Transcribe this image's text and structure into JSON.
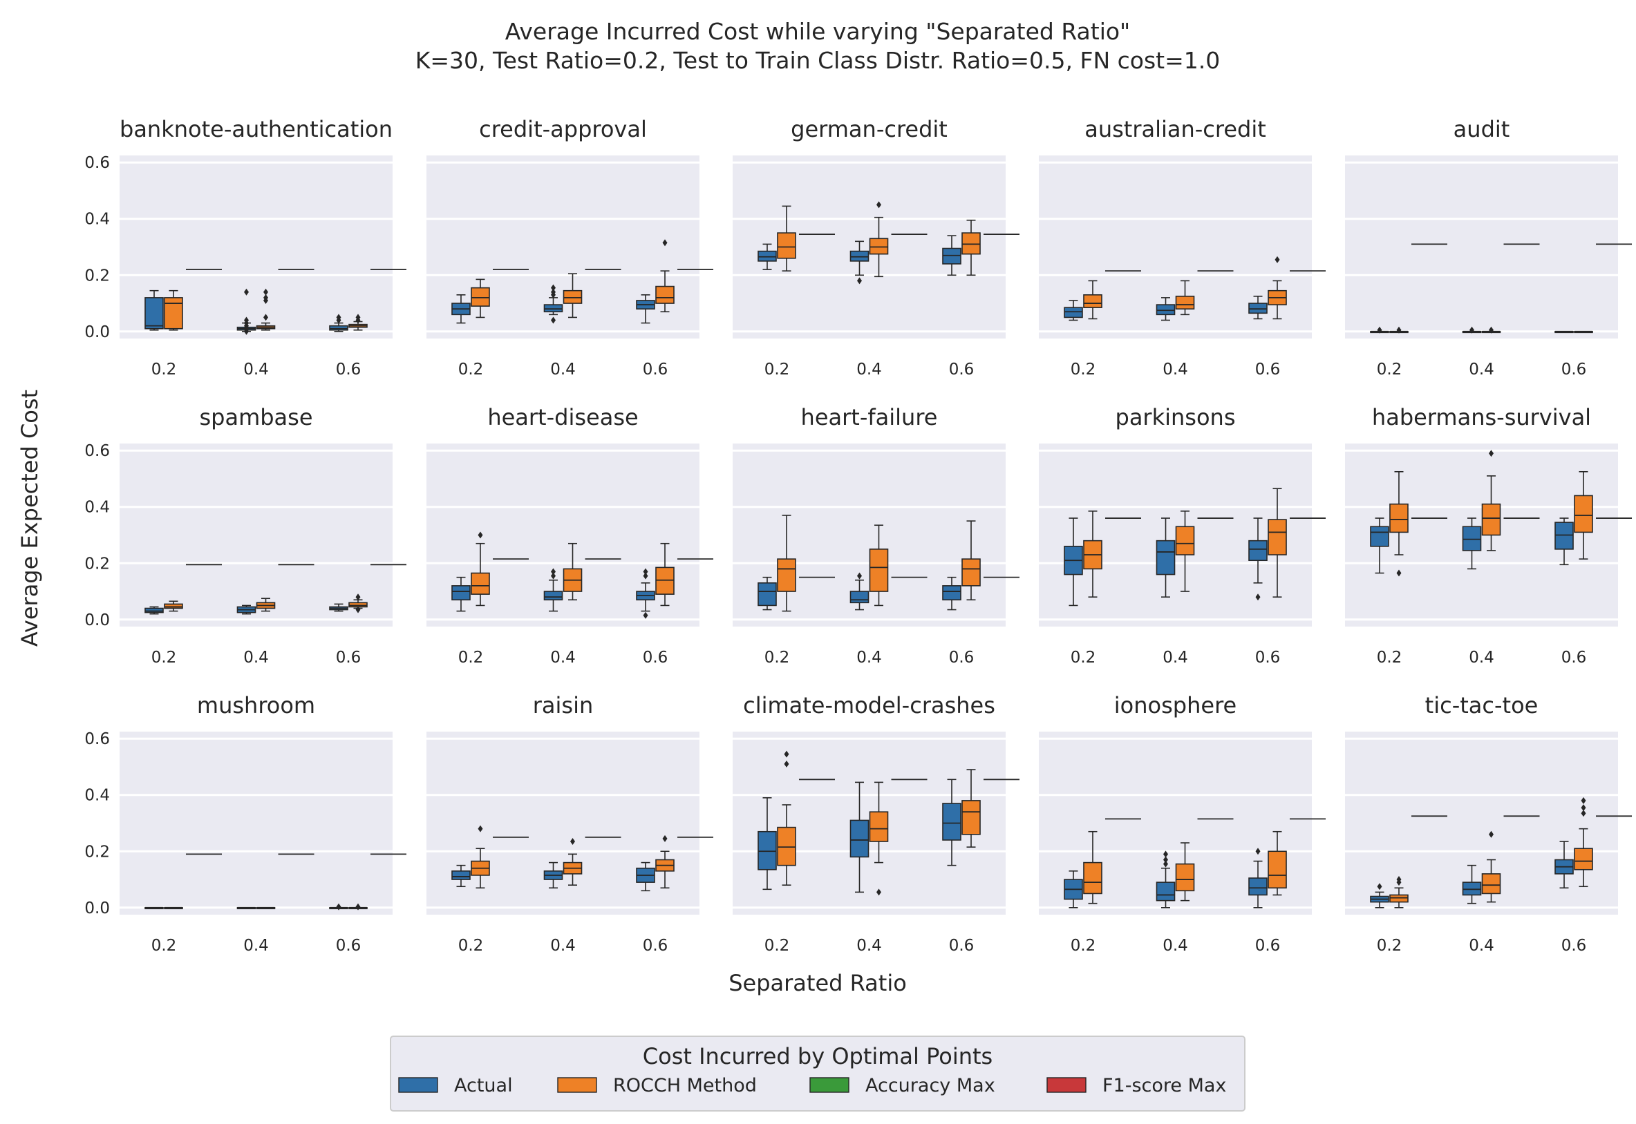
{
  "title": "Average Incurred Cost while varying \"Separated Ratio\"",
  "subtitle": "K=30, Test Ratio=0.2, Test to Train Class Distr. Ratio=0.5, FN cost=1.0",
  "xlabel": "Separated Ratio",
  "ylabel": "Average Expected Cost",
  "legend": {
    "title": "Cost Incurred by Optimal Points",
    "entries": [
      {
        "label": "Actual",
        "color": "#2f6fa8"
      },
      {
        "label": "ROCCH Method",
        "color": "#ee8126"
      },
      {
        "label": "Accuracy Max",
        "color": "#3a9a3a"
      },
      {
        "label": "F1-score Max",
        "color": "#c8383a"
      }
    ]
  },
  "colors": {
    "panel_bg": "#eaeaf2",
    "grid": "#ffffff",
    "actual": "#2f6fa8",
    "rocch": "#ee8126",
    "line": "#262626"
  },
  "chart_data": {
    "type": "box",
    "categories": [
      "0.2",
      "0.4",
      "0.6"
    ],
    "yticks": [
      "0.0",
      "0.2",
      "0.4",
      "0.6"
    ],
    "ylim": [
      -0.025,
      0.625
    ],
    "grid": true,
    "legend_position": "bottom-center",
    "series_names": [
      "Actual",
      "ROCCH Method",
      "Accuracy Max",
      "F1-score Max"
    ],
    "panels": [
      {
        "name": "banknote-authentication",
        "hline": [
          0.22,
          0.22,
          0.22
        ],
        "actual": [
          [
            0.005,
            0.01,
            0.02,
            0.12,
            0.145
          ],
          [
            0.0,
            0.005,
            0.01,
            0.015,
            0.03
          ],
          [
            0.0,
            0.005,
            0.01,
            0.02,
            0.03
          ]
        ],
        "rocch": [
          [
            0.005,
            0.01,
            0.1,
            0.12,
            0.145
          ],
          [
            0.005,
            0.01,
            0.015,
            0.02,
            0.03
          ],
          [
            0.005,
            0.015,
            0.02,
            0.025,
            0.035
          ]
        ],
        "outliers_actual": [
          [],
          [
            0.14,
            0.04,
            0.03,
            0.02,
            0.01,
            0.0
          ],
          [
            0.05,
            0.04
          ]
        ],
        "outliers_rocch": [
          [],
          [
            0.14,
            0.12,
            0.11,
            0.05
          ],
          [
            0.05,
            0.04
          ]
        ]
      },
      {
        "name": "credit-approval",
        "hline": [
          0.22,
          0.22,
          0.22
        ],
        "actual": [
          [
            0.03,
            0.06,
            0.08,
            0.1,
            0.13
          ],
          [
            0.06,
            0.07,
            0.08,
            0.095,
            0.12
          ],
          [
            0.03,
            0.08,
            0.095,
            0.11,
            0.13
          ]
        ],
        "rocch": [
          [
            0.05,
            0.09,
            0.12,
            0.155,
            0.185
          ],
          [
            0.05,
            0.1,
            0.12,
            0.145,
            0.205
          ],
          [
            0.07,
            0.1,
            0.12,
            0.16,
            0.215
          ]
        ],
        "outliers_actual": [
          [],
          [
            0.155,
            0.14,
            0.13,
            0.04
          ],
          []
        ],
        "outliers_rocch": [
          [],
          [],
          [
            0.315
          ]
        ]
      },
      {
        "name": "german-credit",
        "hline": [
          0.345,
          0.345,
          0.345
        ],
        "actual": [
          [
            0.22,
            0.25,
            0.265,
            0.285,
            0.31
          ],
          [
            0.2,
            0.25,
            0.265,
            0.285,
            0.32
          ],
          [
            0.2,
            0.24,
            0.27,
            0.295,
            0.34
          ]
        ],
        "rocch": [
          [
            0.215,
            0.26,
            0.3,
            0.35,
            0.445
          ],
          [
            0.195,
            0.275,
            0.3,
            0.33,
            0.405
          ],
          [
            0.2,
            0.275,
            0.31,
            0.35,
            0.395
          ]
        ],
        "outliers_actual": [
          [],
          [
            0.18
          ],
          []
        ],
        "outliers_rocch": [
          [],
          [
            0.45
          ],
          []
        ]
      },
      {
        "name": "australian-credit",
        "hline": [
          0.215,
          0.215,
          0.215
        ],
        "actual": [
          [
            0.04,
            0.05,
            0.07,
            0.085,
            0.11
          ],
          [
            0.04,
            0.06,
            0.075,
            0.095,
            0.12
          ],
          [
            0.045,
            0.065,
            0.08,
            0.1,
            0.125
          ]
        ],
        "rocch": [
          [
            0.045,
            0.085,
            0.1,
            0.13,
            0.18
          ],
          [
            0.06,
            0.08,
            0.095,
            0.125,
            0.18
          ],
          [
            0.045,
            0.095,
            0.12,
            0.145,
            0.18
          ]
        ],
        "outliers_actual": [
          [],
          [],
          []
        ],
        "outliers_rocch": [
          [],
          [],
          [
            0.255
          ]
        ]
      },
      {
        "name": "audit",
        "hline": [
          0.31,
          0.31,
          0.31
        ],
        "actual": [
          [
            0,
            0,
            0,
            0,
            0
          ],
          [
            0,
            0,
            0,
            0,
            0
          ],
          [
            0,
            0,
            0,
            0,
            0
          ]
        ],
        "rocch": [
          [
            0,
            0,
            0,
            0,
            0
          ],
          [
            0,
            0,
            0,
            0,
            0
          ],
          [
            0,
            0,
            0,
            0,
            0
          ]
        ],
        "outliers_actual": [
          [
            0.005
          ],
          [
            0.005
          ],
          []
        ],
        "outliers_rocch": [
          [
            0.005
          ],
          [
            0.005
          ],
          []
        ]
      },
      {
        "name": "spambase",
        "hline": [
          0.195,
          0.195,
          0.195
        ],
        "actual": [
          [
            0.02,
            0.025,
            0.03,
            0.04,
            0.045
          ],
          [
            0.02,
            0.025,
            0.035,
            0.045,
            0.05
          ],
          [
            0.03,
            0.035,
            0.04,
            0.045,
            0.055
          ]
        ],
        "rocch": [
          [
            0.03,
            0.04,
            0.045,
            0.055,
            0.065
          ],
          [
            0.03,
            0.04,
            0.05,
            0.06,
            0.075
          ],
          [
            0.04,
            0.045,
            0.05,
            0.06,
            0.07
          ]
        ],
        "outliers_actual": [
          [],
          [],
          []
        ],
        "outliers_rocch": [
          [],
          [],
          [
            0.08,
            0.035
          ]
        ]
      },
      {
        "name": "heart-disease",
        "hline": [
          0.215,
          0.215,
          0.215
        ],
        "actual": [
          [
            0.03,
            0.07,
            0.1,
            0.12,
            0.15
          ],
          [
            0.03,
            0.07,
            0.08,
            0.1,
            0.14
          ],
          [
            0.03,
            0.07,
            0.085,
            0.1,
            0.13
          ]
        ],
        "rocch": [
          [
            0.05,
            0.09,
            0.12,
            0.165,
            0.27
          ],
          [
            0.07,
            0.1,
            0.14,
            0.18,
            0.27
          ],
          [
            0.05,
            0.09,
            0.14,
            0.185,
            0.27
          ]
        ],
        "outliers_actual": [
          [],
          [
            0.17,
            0.155
          ],
          [
            0.17,
            0.155,
            0.015
          ]
        ],
        "outliers_rocch": [
          [
            0.3
          ],
          [],
          []
        ]
      },
      {
        "name": "heart-failure",
        "hline": [
          0.15,
          0.15,
          0.15
        ],
        "actual": [
          [
            0.035,
            0.05,
            0.1,
            0.13,
            0.15
          ],
          [
            0.035,
            0.06,
            0.07,
            0.1,
            0.14
          ],
          [
            0.035,
            0.07,
            0.1,
            0.12,
            0.15
          ]
        ],
        "rocch": [
          [
            0.03,
            0.1,
            0.18,
            0.215,
            0.37
          ],
          [
            0.05,
            0.1,
            0.185,
            0.25,
            0.335
          ],
          [
            0.07,
            0.12,
            0.18,
            0.215,
            0.35
          ]
        ],
        "outliers_actual": [
          [],
          [
            0.155
          ],
          []
        ],
        "outliers_rocch": [
          [],
          [],
          []
        ]
      },
      {
        "name": "parkinsons",
        "hline": [
          0.36,
          0.36,
          0.36
        ],
        "actual": [
          [
            0.05,
            0.16,
            0.21,
            0.26,
            0.36
          ],
          [
            0.08,
            0.16,
            0.24,
            0.28,
            0.36
          ],
          [
            0.13,
            0.21,
            0.25,
            0.28,
            0.36
          ]
        ],
        "rocch": [
          [
            0.08,
            0.18,
            0.23,
            0.28,
            0.385
          ],
          [
            0.1,
            0.23,
            0.27,
            0.33,
            0.385
          ],
          [
            0.08,
            0.23,
            0.31,
            0.355,
            0.465
          ]
        ],
        "outliers_actual": [
          [],
          [],
          [
            0.08
          ]
        ],
        "outliers_rocch": [
          [],
          [],
          []
        ]
      },
      {
        "name": "habermans-survival",
        "hline": [
          0.36,
          0.36,
          0.36
        ],
        "actual": [
          [
            0.165,
            0.26,
            0.31,
            0.33,
            0.36
          ],
          [
            0.18,
            0.245,
            0.285,
            0.33,
            0.36
          ],
          [
            0.195,
            0.25,
            0.3,
            0.345,
            0.36
          ]
        ],
        "rocch": [
          [
            0.23,
            0.31,
            0.355,
            0.41,
            0.525
          ],
          [
            0.245,
            0.3,
            0.36,
            0.41,
            0.51
          ],
          [
            0.215,
            0.31,
            0.37,
            0.44,
            0.525
          ]
        ],
        "outliers_actual": [
          [],
          [],
          []
        ],
        "outliers_rocch": [
          [
            0.165
          ],
          [
            0.59
          ],
          []
        ]
      },
      {
        "name": "mushroom",
        "hline": [
          0.19,
          0.19,
          0.19
        ],
        "actual": [
          [
            0,
            0,
            0,
            0,
            0
          ],
          [
            0,
            0,
            0,
            0,
            0
          ],
          [
            0,
            0,
            0,
            0,
            0
          ]
        ],
        "rocch": [
          [
            0,
            0,
            0,
            0,
            0
          ],
          [
            0,
            0,
            0,
            0,
            0
          ],
          [
            0,
            0,
            0,
            0,
            0
          ]
        ],
        "outliers_actual": [
          [],
          [],
          [
            0.003
          ]
        ],
        "outliers_rocch": [
          [],
          [],
          [
            0.003
          ]
        ]
      },
      {
        "name": "raisin",
        "hline": [
          0.25,
          0.25,
          0.25
        ],
        "actual": [
          [
            0.075,
            0.1,
            0.11,
            0.13,
            0.15
          ],
          [
            0.07,
            0.1,
            0.115,
            0.13,
            0.16
          ],
          [
            0.06,
            0.09,
            0.115,
            0.14,
            0.16
          ]
        ],
        "rocch": [
          [
            0.07,
            0.115,
            0.14,
            0.165,
            0.21
          ],
          [
            0.08,
            0.12,
            0.14,
            0.16,
            0.19
          ],
          [
            0.07,
            0.13,
            0.15,
            0.17,
            0.2
          ]
        ],
        "outliers_actual": [
          [],
          [],
          []
        ],
        "outliers_rocch": [
          [
            0.28
          ],
          [
            0.235
          ],
          [
            0.245
          ]
        ]
      },
      {
        "name": "climate-model-crashes",
        "hline": [
          0.455,
          0.455,
          0.455
        ],
        "actual": [
          [
            0.065,
            0.135,
            0.2,
            0.27,
            0.39
          ],
          [
            0.055,
            0.18,
            0.24,
            0.31,
            0.445
          ],
          [
            0.15,
            0.24,
            0.3,
            0.37,
            0.455
          ]
        ],
        "rocch": [
          [
            0.08,
            0.15,
            0.215,
            0.285,
            0.365
          ],
          [
            0.16,
            0.235,
            0.28,
            0.34,
            0.445
          ],
          [
            0.215,
            0.26,
            0.34,
            0.38,
            0.49
          ]
        ],
        "outliers_actual": [
          [],
          [],
          []
        ],
        "outliers_rocch": [
          [
            0.545,
            0.51
          ],
          [
            0.055
          ],
          []
        ]
      },
      {
        "name": "ionosphere",
        "hline": [
          0.315,
          0.315,
          0.315
        ],
        "actual": [
          [
            0.0,
            0.03,
            0.065,
            0.1,
            0.13
          ],
          [
            0.0,
            0.025,
            0.045,
            0.09,
            0.14
          ],
          [
            0.0,
            0.045,
            0.07,
            0.105,
            0.165
          ]
        ],
        "rocch": [
          [
            0.015,
            0.05,
            0.09,
            0.16,
            0.27
          ],
          [
            0.025,
            0.06,
            0.1,
            0.155,
            0.23
          ],
          [
            0.045,
            0.07,
            0.115,
            0.2,
            0.27
          ]
        ],
        "outliers_actual": [
          [],
          [
            0.19,
            0.17,
            0.155
          ],
          [
            0.2
          ]
        ],
        "outliers_rocch": [
          [],
          [],
          []
        ]
      },
      {
        "name": "tic-tac-toe",
        "hline": [
          0.325,
          0.325,
          0.325
        ],
        "actual": [
          [
            0.0,
            0.02,
            0.03,
            0.04,
            0.055
          ],
          [
            0.015,
            0.045,
            0.065,
            0.09,
            0.15
          ],
          [
            0.07,
            0.12,
            0.145,
            0.17,
            0.235
          ]
        ],
        "rocch": [
          [
            0.0,
            0.02,
            0.035,
            0.045,
            0.07
          ],
          [
            0.02,
            0.05,
            0.08,
            0.12,
            0.17
          ],
          [
            0.075,
            0.135,
            0.165,
            0.21,
            0.28
          ]
        ],
        "outliers_actual": [
          [
            0.075
          ],
          [],
          []
        ],
        "outliers_rocch": [
          [
            0.1,
            0.09
          ],
          [
            0.26
          ],
          [
            0.38,
            0.355,
            0.335
          ]
        ]
      }
    ]
  }
}
